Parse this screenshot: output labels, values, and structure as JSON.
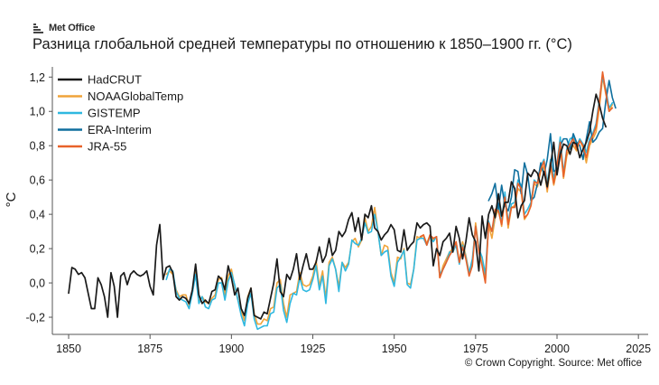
{
  "logo": {
    "text": "Met Office",
    "icon": "met-office-logo-icon",
    "color": "#2b2b2b"
  },
  "title": "Разница глобальной средней температуры по отношению к 1850–1900 гг. (°C)",
  "credit": "© Crown Copyright. Source: Met office",
  "chart_data": {
    "type": "line",
    "title": "Разница глобальной средней температуры по отношению к 1850–1900 гг. (°C)",
    "xlabel": "",
    "ylabel": "°C",
    "xlim": [
      1845,
      2028
    ],
    "ylim": [
      -0.3,
      1.27
    ],
    "xticks": [
      1850,
      1875,
      1900,
      1925,
      1950,
      1975,
      2000,
      2025
    ],
    "yticks": [
      -0.2,
      0.0,
      0.2,
      0.4,
      0.6,
      0.8,
      1.0,
      1.2
    ],
    "ytick_labels": [
      "-0,2",
      "0,0",
      "0,2",
      "0,4",
      "0,6",
      "0,8",
      "1,0",
      "1,2"
    ],
    "grid": false,
    "legend_position": "top-left",
    "series": [
      {
        "name": "HadCRUT",
        "color": "#1a1a1a",
        "x_start": 1850,
        "values": [
          -0.06,
          0.09,
          0.08,
          0.05,
          0.06,
          0.03,
          -0.06,
          -0.15,
          -0.15,
          0.03,
          -0.01,
          -0.08,
          -0.2,
          0.06,
          -0.02,
          -0.2,
          0.04,
          0.06,
          -0.01,
          0.05,
          0.07,
          0.05,
          0.04,
          0.05,
          0.07,
          -0.02,
          -0.07,
          0.22,
          0.34,
          0.02,
          0.09,
          0.1,
          0.06,
          -0.08,
          -0.1,
          -0.08,
          -0.09,
          -0.12,
          -0.04,
          0.11,
          -0.07,
          -0.12,
          -0.1,
          -0.12,
          -0.05,
          -0.04,
          0.04,
          0.02,
          -0.04,
          0.1,
          0.03,
          -0.07,
          -0.03,
          -0.15,
          -0.19,
          -0.09,
          -0.03,
          -0.19,
          -0.2,
          -0.21,
          -0.17,
          -0.18,
          -0.09,
          0.0,
          0.14,
          -0.05,
          -0.08,
          0.05,
          0.02,
          0.08,
          0.17,
          0.02,
          0.1,
          0.17,
          0.08,
          0.08,
          0.12,
          0.21,
          0.12,
          0.16,
          0.26,
          0.16,
          0.19,
          0.3,
          0.27,
          0.3,
          0.37,
          0.41,
          0.3,
          0.38,
          0.25,
          0.4,
          0.38,
          0.45,
          0.32,
          0.3,
          0.25,
          0.28,
          0.3,
          0.34,
          0.31,
          0.19,
          0.18,
          0.31,
          0.19,
          0.22,
          0.24,
          0.35,
          0.32,
          0.34,
          0.35,
          0.33,
          0.1,
          0.2,
          0.16,
          0.24,
          0.26,
          0.29,
          0.18,
          0.33,
          0.26,
          0.14,
          0.24,
          0.38,
          0.28,
          0.24,
          0.07,
          0.39,
          0.26,
          0.4,
          0.45,
          0.38,
          0.52,
          0.39,
          0.47,
          0.47,
          0.59,
          0.55,
          0.38,
          0.45,
          0.48,
          0.64,
          0.62,
          0.66,
          0.64,
          0.57,
          0.65,
          0.56,
          0.68,
          0.82,
          0.63,
          0.75,
          0.81,
          0.8,
          0.75,
          0.82,
          0.81,
          0.73,
          0.78,
          0.82,
          0.88,
          1.0,
          1.1,
          1.04,
          0.96,
          0.91
        ]
      },
      {
        "name": "NOAAGlobalTemp",
        "color": "#f0a43a",
        "x_start": 1880,
        "values": [
          0.05,
          0.07,
          0.05,
          -0.04,
          -0.08,
          -0.07,
          -0.07,
          -0.13,
          -0.06,
          0.07,
          -0.11,
          -0.08,
          -0.11,
          -0.12,
          -0.09,
          -0.07,
          0.02,
          0.03,
          -0.07,
          0.04,
          0.08,
          -0.02,
          -0.1,
          -0.16,
          -0.22,
          -0.08,
          -0.03,
          -0.18,
          -0.24,
          -0.24,
          -0.21,
          -0.22,
          -0.15,
          -0.14,
          0.0,
          0.02,
          -0.12,
          -0.2,
          -0.07,
          -0.06,
          -0.05,
          0.06,
          -0.01,
          -0.02,
          -0.01,
          0.04,
          0.13,
          -0.02,
          0.07,
          -0.09,
          0.12,
          0.15,
          0.08,
          -0.02,
          0.12,
          0.09,
          0.12,
          0.24,
          0.26,
          0.21,
          0.25,
          0.38,
          0.3,
          0.33,
          0.44,
          0.3,
          0.16,
          0.22,
          0.21,
          0.06,
          0.0,
          0.15,
          0.14,
          0.2,
          0.0,
          -0.01,
          0.08,
          0.27,
          0.26,
          0.28,
          0.23,
          0.28,
          0.25,
          0.27,
          0.03,
          0.1,
          0.14,
          0.18,
          0.2,
          0.24,
          0.12,
          0.24,
          0.16,
          0.06,
          0.12,
          0.35,
          0.2,
          0.14,
          0.02,
          0.34,
          0.26,
          0.38,
          0.43,
          0.33,
          0.5,
          0.32,
          0.44,
          0.45,
          0.55,
          0.53,
          0.37,
          0.4,
          0.45,
          0.58,
          0.56,
          0.65,
          0.68,
          0.53,
          0.68,
          0.57,
          0.66,
          0.8,
          0.61,
          0.74,
          0.79,
          0.8,
          0.77,
          0.83,
          0.79,
          0.7,
          0.8,
          0.84,
          0.88,
          1.02,
          1.2,
          1.1,
          1.0,
          1.04
        ]
      },
      {
        "name": "GISTEMP",
        "color": "#2fb8e0",
        "x_start": 1880,
        "values": [
          0.02,
          0.08,
          0.07,
          -0.05,
          -0.09,
          -0.1,
          -0.11,
          -0.15,
          -0.06,
          0.05,
          -0.12,
          -0.08,
          -0.14,
          -0.15,
          -0.1,
          -0.09,
          0.0,
          0.0,
          -0.1,
          0.01,
          0.06,
          -0.01,
          -0.1,
          -0.19,
          -0.25,
          -0.12,
          -0.06,
          -0.21,
          -0.27,
          -0.26,
          -0.25,
          -0.25,
          -0.18,
          -0.17,
          -0.03,
          -0.01,
          -0.16,
          -0.23,
          -0.12,
          -0.06,
          -0.07,
          0.03,
          -0.04,
          -0.05,
          -0.04,
          0.02,
          0.1,
          -0.04,
          0.04,
          -0.12,
          0.1,
          0.14,
          0.08,
          -0.05,
          0.12,
          0.07,
          0.11,
          0.25,
          0.23,
          0.22,
          0.26,
          0.35,
          0.29,
          0.3,
          0.4,
          0.3,
          0.16,
          0.18,
          0.19,
          0.04,
          -0.02,
          0.12,
          0.15,
          0.19,
          -0.01,
          -0.03,
          0.08,
          0.25,
          0.26,
          0.26,
          0.22,
          0.27,
          0.24,
          0.27,
          0.05,
          0.08,
          0.12,
          0.18,
          0.18,
          0.22,
          0.11,
          0.22,
          0.15,
          0.06,
          0.14,
          0.33,
          0.2,
          0.15,
          0.05,
          0.36,
          0.3,
          0.4,
          0.46,
          0.36,
          0.53,
          0.35,
          0.46,
          0.47,
          0.6,
          0.57,
          0.4,
          0.43,
          0.47,
          0.6,
          0.58,
          0.68,
          0.72,
          0.58,
          0.72,
          0.61,
          0.7,
          0.85,
          0.64,
          0.78,
          0.84,
          0.85,
          0.8,
          0.84,
          0.81,
          0.76,
          0.84,
          0.87,
          0.93,
          1.07,
          1.2,
          1.13,
          1.02,
          1.05
        ]
      },
      {
        "name": "ERA-Interim",
        "color": "#0f6f9e",
        "x_start": 1979,
        "values": [
          0.48,
          0.52,
          0.58,
          0.43,
          0.57,
          0.45,
          0.42,
          0.5,
          0.66,
          0.65,
          0.52,
          0.7,
          0.63,
          0.48,
          0.5,
          0.58,
          0.7,
          0.63,
          0.72,
          0.87,
          0.65,
          0.66,
          0.8,
          0.84,
          0.84,
          0.78,
          0.87,
          0.82,
          0.8,
          0.72,
          0.84,
          0.94,
          0.82,
          0.84,
          0.88,
          0.9,
          1.06,
          1.18,
          1.08,
          1.02
        ]
      },
      {
        "name": "JRA-55",
        "color": "#e8622a",
        "x_start": 1958,
        "values": [
          0.27,
          0.28,
          0.22,
          0.28,
          0.26,
          0.27,
          0.03,
          0.08,
          0.12,
          0.16,
          0.19,
          0.24,
          0.12,
          0.21,
          0.14,
          0.04,
          0.1,
          0.33,
          0.18,
          0.1,
          0.0,
          0.35,
          0.3,
          0.43,
          0.42,
          0.34,
          0.5,
          0.34,
          0.44,
          0.44,
          0.58,
          0.55,
          0.38,
          0.4,
          0.45,
          0.59,
          0.58,
          0.66,
          0.71,
          0.55,
          0.7,
          0.58,
          0.69,
          0.82,
          0.62,
          0.77,
          0.81,
          0.84,
          0.78,
          0.83,
          0.8,
          0.73,
          0.82,
          0.86,
          0.91,
          1.05,
          1.23,
          1.11,
          1.0,
          1.02
        ]
      }
    ]
  }
}
